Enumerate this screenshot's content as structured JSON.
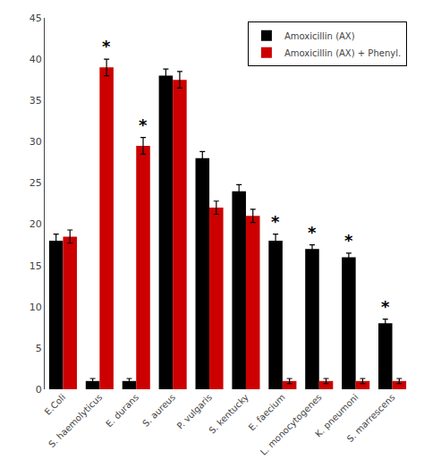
{
  "chart_data": {
    "type": "bar",
    "categories": [
      "E.Coli",
      "S. haemolyticus",
      "E. durans",
      "S. aureus",
      "P. vulgaris",
      "S. kentucky",
      "E. faecium",
      "L. monocytogenes",
      "K. pneumoni",
      "S. marrescens"
    ],
    "series": [
      {
        "name": "Amoxicillin (AX)",
        "color": "#000000",
        "values": [
          18.0,
          1.0,
          1.0,
          38.0,
          28.0,
          24.0,
          18.0,
          17.0,
          16.0,
          8.0
        ],
        "errors": [
          0.8,
          0.3,
          0.3,
          0.8,
          0.8,
          0.8,
          0.8,
          0.5,
          0.5,
          0.5
        ]
      },
      {
        "name": "Amoxicillin (AX) + Phenyl.",
        "color": "#cc0000",
        "values": [
          18.5,
          39.0,
          29.5,
          37.5,
          22.0,
          21.0,
          1.0,
          1.0,
          1.0,
          1.0
        ],
        "errors": [
          0.8,
          1.0,
          1.0,
          1.0,
          0.8,
          0.8,
          0.3,
          0.3,
          0.3,
          0.3
        ]
      }
    ],
    "annotations": [
      {
        "text": "*",
        "category": "S. haemolyticus",
        "series": "Amoxicillin (AX) + Phenyl."
      },
      {
        "text": "*",
        "category": "E. durans",
        "series": "Amoxicillin (AX) + Phenyl."
      },
      {
        "text": "*",
        "category": "E. faecium",
        "series": "Amoxicillin (AX)"
      },
      {
        "text": "*",
        "category": "L. monocytogenes",
        "series": "Amoxicillin (AX)"
      },
      {
        "text": "*",
        "category": "K. pneumoni",
        "series": "Amoxicillin (AX)"
      },
      {
        "text": "*",
        "category": "S. marrescens",
        "series": "Amoxicillin (AX)"
      }
    ],
    "ylim": [
      0,
      45
    ],
    "yticks": [
      0,
      5,
      10,
      15,
      20,
      25,
      30,
      35,
      40,
      45
    ],
    "grid": false,
    "legend": "upper right"
  }
}
